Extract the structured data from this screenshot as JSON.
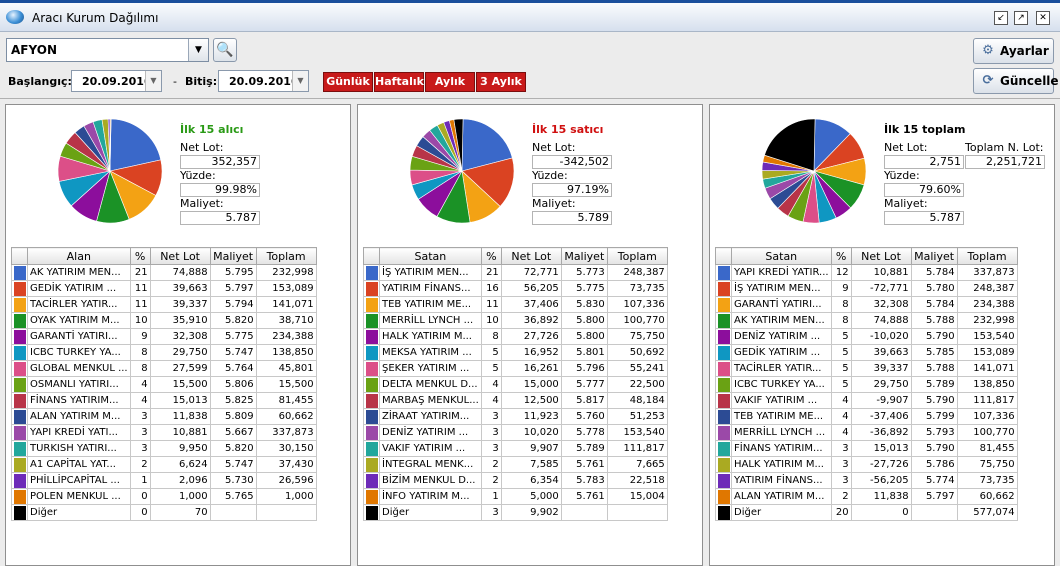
{
  "window": {
    "title": "Aracı Kurum Dağılımı"
  },
  "filters": {
    "city": "AFYON",
    "start_label": "Başlangıç:",
    "start_date": "20.09.2016",
    "end_label": "Bitiş:",
    "end_date": "20.09.2016",
    "dash": "-",
    "periods": [
      "Günlük",
      "Haftalık",
      "Aylık",
      "3 Aylık"
    ]
  },
  "buttons": {
    "settings": "Ayarlar",
    "refresh": "Güncelle"
  },
  "colors": [
    "#3a68c9",
    "#da4322",
    "#f3a214",
    "#1b9226",
    "#8c0e9c",
    "#0f97c2",
    "#dc4f88",
    "#6aa214",
    "#b83448",
    "#2c4b94",
    "#9b49a8",
    "#22a79c",
    "#aaaa22",
    "#6d2bb8",
    "#e07700",
    "#000000"
  ],
  "panels": [
    {
      "title": "İlk 15 alıcı",
      "title_color": "#2a9a16",
      "fields": [
        {
          "label": "Net Lot:",
          "value": "352,357"
        },
        {
          "label": "Yüzde:",
          "value": "99.98%"
        },
        {
          "label": "Maliyet:",
          "value": "5.787"
        }
      ],
      "extra": null,
      "columns": [
        "",
        "Alan",
        "%",
        "Net Lot",
        "Maliyet",
        "Toplam"
      ],
      "rows": [
        [
          "AK YATIRIM MEN...",
          "21",
          "74,888",
          "5.795",
          "232,998"
        ],
        [
          "GEDİK YATIRIM ...",
          "11",
          "39,663",
          "5.797",
          "153,089"
        ],
        [
          "TACİRLER YATIR...",
          "11",
          "39,337",
          "5.794",
          "141,071"
        ],
        [
          "OYAK YATIRIM M...",
          "10",
          "35,910",
          "5.820",
          "38,710"
        ],
        [
          "GARANTİ YATIRI...",
          "9",
          "32,308",
          "5.775",
          "234,388"
        ],
        [
          "ICBC TURKEY YA...",
          "8",
          "29,750",
          "5.747",
          "138,850"
        ],
        [
          "GLOBAL MENKUL ...",
          "8",
          "27,599",
          "5.764",
          "45,801"
        ],
        [
          "OSMANLI YATIRI...",
          "4",
          "15,500",
          "5.806",
          "15,500"
        ],
        [
          "FİNANS YATIRIM...",
          "4",
          "15,013",
          "5.825",
          "81,455"
        ],
        [
          "ALAN YATIRIM M...",
          "3",
          "11,838",
          "5.809",
          "60,662"
        ],
        [
          "YAPI KREDİ YATI...",
          "3",
          "10,881",
          "5.667",
          "337,873"
        ],
        [
          "TURKISH YATIRI...",
          "3",
          "9,950",
          "5.820",
          "30,150"
        ],
        [
          "A1 CAPİTAL YAT...",
          "2",
          "6,624",
          "5.747",
          "37,430"
        ],
        [
          "PHİLLİPCAPİTAL ...",
          "1",
          "2,096",
          "5.730",
          "26,596"
        ],
        [
          "POLEN MENKUL ...",
          "0",
          "1,000",
          "5.765",
          "1,000"
        ],
        [
          "Diğer",
          "0",
          "70",
          "",
          ""
        ]
      ]
    },
    {
      "title": "İlk 15 satıcı",
      "title_color": "#d01010",
      "fields": [
        {
          "label": "Net Lot:",
          "value": "-342,502"
        },
        {
          "label": "Yüzde:",
          "value": "97.19%"
        },
        {
          "label": "Maliyet:",
          "value": "5.789"
        }
      ],
      "extra": null,
      "columns": [
        "",
        "Satan",
        "%",
        "Net Lot",
        "Maliyet",
        "Toplam"
      ],
      "rows": [
        [
          "İŞ YATIRIM MEN...",
          "21",
          "72,771",
          "5.773",
          "248,387"
        ],
        [
          "YATIRIM FİNANS...",
          "16",
          "56,205",
          "5.775",
          "73,735"
        ],
        [
          "TEB YATIRIM ME...",
          "11",
          "37,406",
          "5.830",
          "107,336"
        ],
        [
          "MERRİLL LYNCH ...",
          "10",
          "36,892",
          "5.800",
          "100,770"
        ],
        [
          "HALK YATIRIM M...",
          "8",
          "27,726",
          "5.800",
          "75,750"
        ],
        [
          "MEKSA YATIRIM ...",
          "5",
          "16,952",
          "5.801",
          "50,692"
        ],
        [
          "ŞEKER YATIRIM ...",
          "5",
          "16,261",
          "5.796",
          "55,241"
        ],
        [
          "DELTA MENKUL D...",
          "4",
          "15,000",
          "5.777",
          "22,500"
        ],
        [
          "MARBAŞ MENKUL...",
          "4",
          "12,500",
          "5.817",
          "48,184"
        ],
        [
          "ZİRAAT YATIRIM...",
          "3",
          "11,923",
          "5.760",
          "51,253"
        ],
        [
          "DENİZ YATIRIM ...",
          "3",
          "10,020",
          "5.778",
          "153,540"
        ],
        [
          "VAKIF YATIRIM ...",
          "3",
          "9,907",
          "5.789",
          "111,817"
        ],
        [
          "İNTEGRAL MENK...",
          "2",
          "7,585",
          "5.761",
          "7,665"
        ],
        [
          "BİZİM MENKUL D...",
          "2",
          "6,354",
          "5.783",
          "22,518"
        ],
        [
          "İNFO YATIRIM M...",
          "1",
          "5,000",
          "5.761",
          "15,004"
        ],
        [
          "Diğer",
          "3",
          "9,902",
          "",
          ""
        ]
      ]
    },
    {
      "title": "İlk 15 toplam",
      "title_color": "#000000",
      "fields": [
        {
          "label": "Net Lot:",
          "value": "2,751"
        },
        {
          "label": "Yüzde:",
          "value": "79.60%"
        },
        {
          "label": "Maliyet:",
          "value": "5.787"
        }
      ],
      "extra": {
        "label": "Toplam N. Lot:",
        "value": "2,251,721"
      },
      "columns": [
        "",
        "Satan",
        "%",
        "Net Lot",
        "Maliyet",
        "Toplam"
      ],
      "rows": [
        [
          "YAPI KREDİ YATIR...",
          "12",
          "10,881",
          "5.784",
          "337,873"
        ],
        [
          "İŞ YATIRIM MEN...",
          "9",
          "-72,771",
          "5.780",
          "248,387"
        ],
        [
          "GARANTİ YATIRI...",
          "8",
          "32,308",
          "5.784",
          "234,388"
        ],
        [
          "AK YATIRIM MEN...",
          "8",
          "74,888",
          "5.788",
          "232,998"
        ],
        [
          "DENİZ YATIRIM ...",
          "5",
          "-10,020",
          "5.790",
          "153,540"
        ],
        [
          "GEDİK YATIRIM ...",
          "5",
          "39,663",
          "5.785",
          "153,089"
        ],
        [
          "TACİRLER YATIR...",
          "5",
          "39,337",
          "5.788",
          "141,071"
        ],
        [
          "ICBC TURKEY YA...",
          "5",
          "29,750",
          "5.789",
          "138,850"
        ],
        [
          "VAKIF YATIRIM ...",
          "4",
          "-9,907",
          "5.790",
          "111,817"
        ],
        [
          "TEB YATIRIM ME...",
          "4",
          "-37,406",
          "5.799",
          "107,336"
        ],
        [
          "MERRİLL LYNCH ...",
          "4",
          "-36,892",
          "5.793",
          "100,770"
        ],
        [
          "FİNANS YATIRIM...",
          "3",
          "15,013",
          "5.790",
          "81,455"
        ],
        [
          "HALK YATIRIM M...",
          "3",
          "-27,726",
          "5.786",
          "75,750"
        ],
        [
          "YATIRIM FİNANS...",
          "3",
          "-56,205",
          "5.774",
          "73,735"
        ],
        [
          "ALAN YATIRIM M...",
          "2",
          "11,838",
          "5.797",
          "60,662"
        ],
        [
          "Diğer",
          "20",
          "0",
          "",
          "577,074"
        ]
      ]
    }
  ]
}
